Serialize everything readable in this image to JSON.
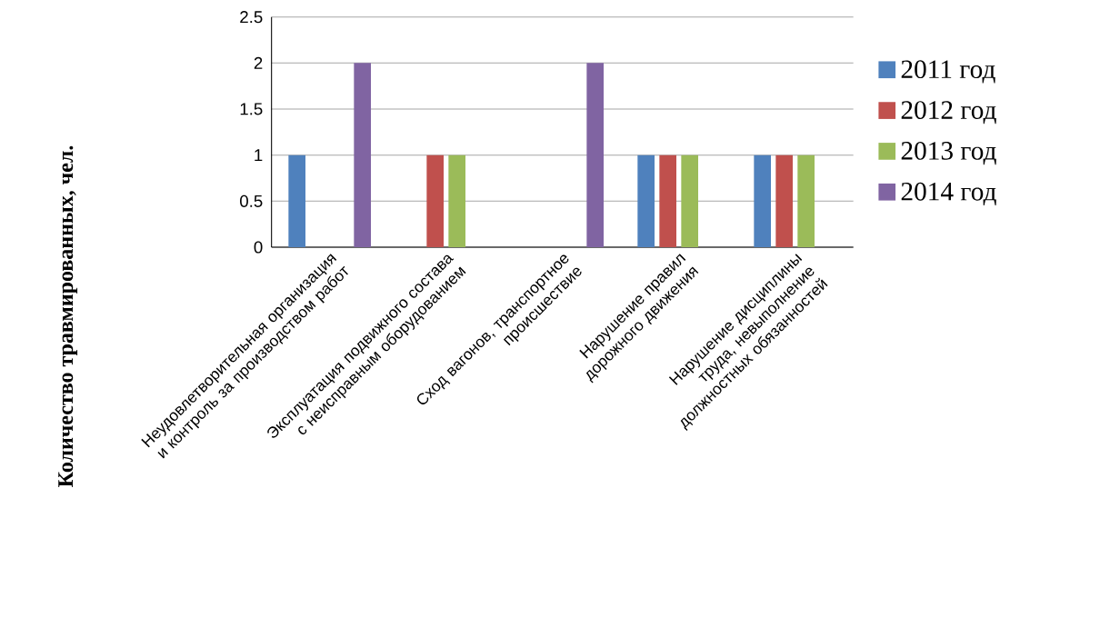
{
  "chart_data": {
    "type": "bar",
    "ylabel": "Количество травмированных, чел.",
    "categories": [
      "Неудовлетворительная организация и контроль за производством работ",
      "Эксплуатация подвижного состава с неисправным оборудованием",
      "Сход вагонов, транспортное происшествие",
      "Нарушение правил дорожного движения",
      "Нарушение дисциплины труда, невыполнение должностных обязанностей"
    ],
    "series": [
      {
        "name": "2011 год",
        "color": "#4f81bd",
        "values": [
          1,
          0,
          0,
          1,
          1
        ]
      },
      {
        "name": "2012 год",
        "color": "#c0504d",
        "values": [
          0,
          1,
          0,
          1,
          1
        ]
      },
      {
        "name": "2013 год",
        "color": "#9bbb59",
        "values": [
          0,
          1,
          0,
          1,
          1
        ]
      },
      {
        "name": "2014 год",
        "color": "#8064a2",
        "values": [
          2,
          0,
          2,
          0,
          0
        ]
      }
    ],
    "ylim": [
      0,
      2.5
    ],
    "yticks": [
      0,
      0.5,
      1,
      1.5,
      2,
      2.5
    ],
    "grid": "y",
    "legend": "right"
  }
}
